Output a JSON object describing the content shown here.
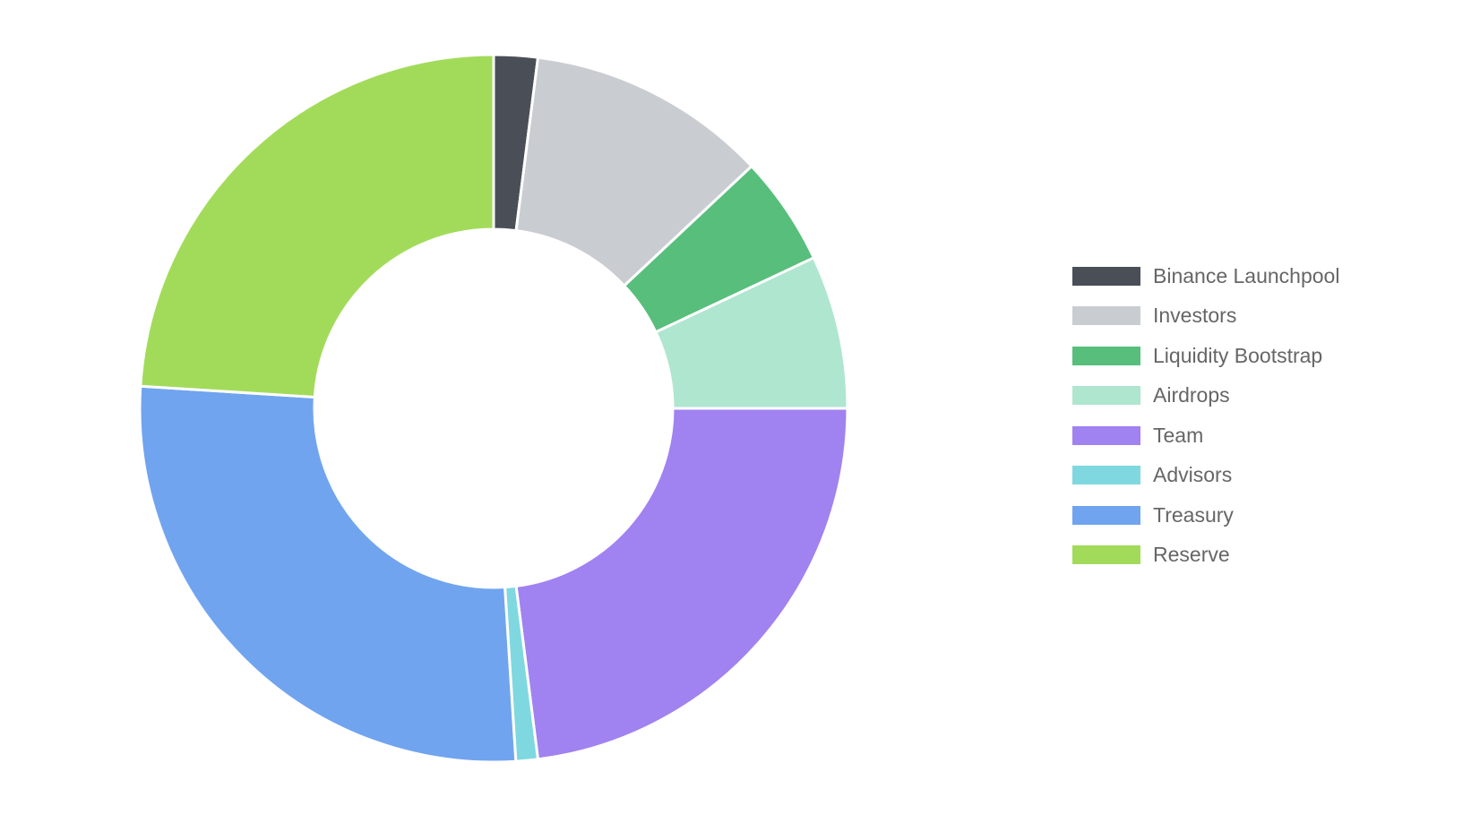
{
  "chart_data": {
    "type": "pie",
    "variant": "doughnut",
    "legend_position": "right",
    "series": [
      {
        "name": "Binance Launchpool",
        "value": 2,
        "color": "#4a4f57"
      },
      {
        "name": "Investors",
        "value": 11,
        "color": "#c9ccd1"
      },
      {
        "name": "Liquidity Bootstrap",
        "value": 5,
        "color": "#58be7c"
      },
      {
        "name": "Airdrops",
        "value": 7,
        "color": "#afe6cf"
      },
      {
        "name": "Team",
        "value": 23,
        "color": "#a082f0"
      },
      {
        "name": "Advisors",
        "value": 1,
        "color": "#7fd8e0"
      },
      {
        "name": "Treasury",
        "value": 27,
        "color": "#70a4ef"
      },
      {
        "name": "Reserve",
        "value": 24,
        "color": "#a2db5a"
      }
    ]
  }
}
